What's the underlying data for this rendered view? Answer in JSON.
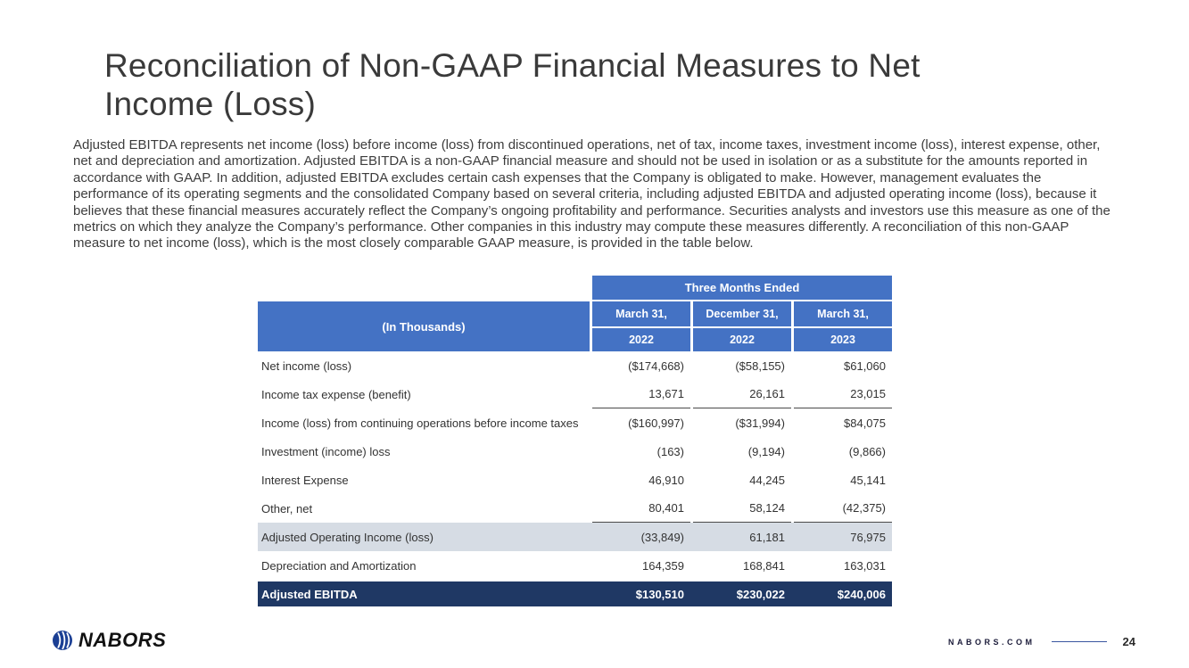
{
  "slide": {
    "title": "Reconciliation of Non-GAAP Financial Measures to Net Income (Loss)",
    "body": "Adjusted EBITDA represents net income (loss) before income (loss) from discontinued operations, net of tax, income taxes, investment income (loss), interest expense, other, net and depreciation and amortization. Adjusted EBITDA is a non-GAAP financial measure and should not be used in isolation or as a substitute for the amounts reported in accordance with GAAP. In addition, adjusted EBITDA excludes certain cash expenses that the Company is obligated to make. However, management evaluates the performance of its operating segments and the consolidated Company based on several criteria, including adjusted EBITDA and adjusted operating income (loss), because it believes that these financial measures accurately reflect the Company’s ongoing profitability and performance. Securities analysts and investors use this measure as one of the metrics on which they analyze the Company’s performance.  Other companies in this industry may compute these measures differently.  A reconciliation of this non-GAAP measure to net income (loss), which is the most closely comparable GAAP measure, is provided in the table below.",
    "logo_text": "NABORS",
    "footer_site": "NABORS.COM",
    "page_number": "24"
  },
  "colors": {
    "header_blue": "#4472C4",
    "dark_navy": "#1F3864",
    "gray_row": "#D6DCE4"
  },
  "table": {
    "banner": "Three Months Ended",
    "row_header": "(In Thousands)",
    "columns": [
      {
        "month": "March 31,",
        "year": "2022"
      },
      {
        "month": "December 31,",
        "year": "2022"
      },
      {
        "month": "March 31,",
        "year": "2023"
      }
    ],
    "rows": [
      {
        "label": "Net income (loss)",
        "values": [
          "($174,668)",
          "($58,155)",
          "$61,060"
        ],
        "style": "normal",
        "underline": false
      },
      {
        "label": "Income tax expense (benefit)",
        "values": [
          "13,671",
          "26,161",
          "23,015"
        ],
        "style": "normal",
        "underline": true
      },
      {
        "label": "Income (loss) from continuing operations before income taxes",
        "values": [
          "($160,997)",
          "($31,994)",
          "$84,075"
        ],
        "style": "normal",
        "underline": false
      },
      {
        "label": "Investment (income) loss",
        "values": [
          "(163)",
          "(9,194)",
          "(9,866)"
        ],
        "style": "normal",
        "underline": false
      },
      {
        "label": "Interest Expense",
        "values": [
          "46,910",
          "44,245",
          "45,141"
        ],
        "style": "normal",
        "underline": false
      },
      {
        "label": "Other, net",
        "values": [
          "80,401",
          "58,124",
          "(42,375)"
        ],
        "style": "normal",
        "underline": true
      },
      {
        "label": "Adjusted Operating Income (loss)",
        "values": [
          "(33,849)",
          "61,181",
          "76,975"
        ],
        "style": "gray",
        "underline": false
      },
      {
        "label": "Depreciation and Amortization",
        "values": [
          "164,359",
          "168,841",
          "163,031"
        ],
        "style": "normal",
        "underline": false
      },
      {
        "label": "Adjusted EBITDA",
        "values": [
          "$130,510",
          "$230,022",
          "$240,006"
        ],
        "style": "dark",
        "underline": false
      }
    ]
  },
  "chart_data": {
    "type": "table",
    "title": "Three Months Ended",
    "categories": [
      "March 31, 2022",
      "December 31, 2022",
      "March 31, 2023"
    ],
    "series": [
      {
        "name": "Net income (loss)",
        "values": [
          -174668,
          -58155,
          61060
        ]
      },
      {
        "name": "Income tax expense (benefit)",
        "values": [
          13671,
          26161,
          23015
        ]
      },
      {
        "name": "Income (loss) from continuing operations before income taxes",
        "values": [
          -160997,
          -31994,
          84075
        ]
      },
      {
        "name": "Investment (income) loss",
        "values": [
          -163,
          -9194,
          -9866
        ]
      },
      {
        "name": "Interest Expense",
        "values": [
          46910,
          44245,
          45141
        ]
      },
      {
        "name": "Other, net",
        "values": [
          80401,
          58124,
          -42375
        ]
      },
      {
        "name": "Adjusted Operating Income (loss)",
        "values": [
          -33849,
          61181,
          76975
        ]
      },
      {
        "name": "Depreciation and Amortization",
        "values": [
          164359,
          168841,
          163031
        ]
      },
      {
        "name": "Adjusted EBITDA",
        "values": [
          130510,
          230022,
          240006
        ]
      }
    ],
    "units": "In Thousands"
  }
}
